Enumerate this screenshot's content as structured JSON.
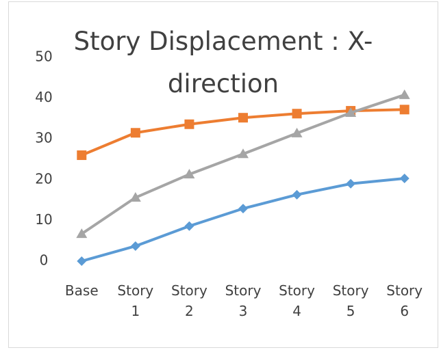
{
  "chart_data": {
    "type": "line",
    "title": "Story Displacement : X-direction",
    "categories": [
      "Base",
      "Story 1",
      "Story 2",
      "Story 3",
      "Story 4",
      "Story 5",
      "Story 6"
    ],
    "series": [
      {
        "color": "#5b9bd5",
        "marker": "diamond",
        "values": [
          0,
          3.7,
          8.6,
          12.9,
          16.3,
          19,
          20.3
        ]
      },
      {
        "color": "#ed7d31",
        "marker": "square",
        "values": [
          26,
          31.5,
          33.6,
          35.2,
          36.2,
          36.9,
          37.2
        ]
      },
      {
        "color": "#a5a5a5",
        "marker": "triangle",
        "values": [
          6.7,
          15.6,
          21.3,
          26.3,
          31.4,
          36.4,
          40.8
        ]
      }
    ],
    "ylim": [
      0,
      50
    ],
    "yticks": [
      0,
      10,
      20,
      30,
      40,
      50
    ],
    "grid": false
  }
}
